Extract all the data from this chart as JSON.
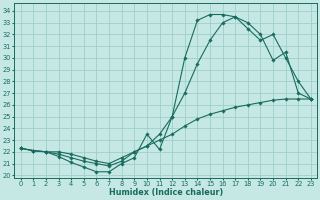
{
  "xlabel": "Humidex (Indice chaleur)",
  "bg_color": "#c5e8e4",
  "grid_color": "#9ecfca",
  "line_color": "#1a6b5f",
  "xlim": [
    -0.5,
    23.5
  ],
  "ylim": [
    19.8,
    34.7
  ],
  "yticks": [
    20,
    21,
    22,
    23,
    24,
    25,
    26,
    27,
    28,
    29,
    30,
    31,
    32,
    33,
    34
  ],
  "xticks": [
    0,
    1,
    2,
    3,
    4,
    5,
    6,
    7,
    8,
    9,
    10,
    11,
    12,
    13,
    14,
    15,
    16,
    17,
    18,
    19,
    20,
    21,
    22,
    23
  ],
  "curve1_x": [
    0,
    1,
    2,
    3,
    4,
    5,
    6,
    7,
    8,
    9,
    10,
    11,
    12,
    13,
    14,
    15,
    16,
    17,
    18,
    19,
    20,
    21,
    22,
    23
  ],
  "curve1_y": [
    22.3,
    22.1,
    22.0,
    21.6,
    21.1,
    20.7,
    20.3,
    20.3,
    21.0,
    21.5,
    23.5,
    22.2,
    25.0,
    30.0,
    33.2,
    33.7,
    33.7,
    33.5,
    33.0,
    32.0,
    29.8,
    30.5,
    27.0,
    26.5
  ],
  "curve2_x": [
    0,
    1,
    2,
    3,
    4,
    5,
    6,
    7,
    8,
    9,
    10,
    11,
    12,
    13,
    14,
    15,
    16,
    17,
    18,
    19,
    20,
    21,
    22,
    23
  ],
  "curve2_y": [
    22.3,
    22.1,
    22.0,
    21.8,
    21.5,
    21.2,
    21.0,
    20.8,
    21.2,
    22.0,
    22.5,
    23.5,
    25.0,
    27.0,
    29.5,
    31.5,
    33.0,
    33.5,
    32.5,
    31.5,
    32.0,
    30.0,
    28.0,
    26.5
  ],
  "curve3_x": [
    0,
    1,
    2,
    3,
    4,
    5,
    6,
    7,
    8,
    9,
    10,
    11,
    12,
    13,
    14,
    15,
    16,
    17,
    18,
    19,
    20,
    21,
    22,
    23
  ],
  "curve3_y": [
    22.3,
    22.1,
    22.0,
    22.0,
    21.8,
    21.5,
    21.2,
    21.0,
    21.5,
    22.0,
    22.5,
    23.0,
    23.5,
    24.2,
    24.8,
    25.2,
    25.5,
    25.8,
    26.0,
    26.2,
    26.4,
    26.5,
    26.5,
    26.5
  ]
}
